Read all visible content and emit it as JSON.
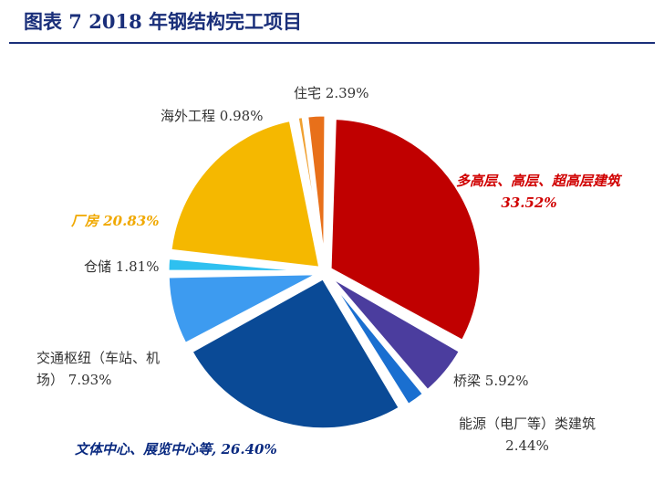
{
  "title": "图表 7 2018 年钢结构完工项目",
  "chart_data": {
    "type": "pie",
    "title": "图表 7 2018 年钢结构完工项目",
    "slices": [
      {
        "label": "多高层、高层、超高层建筑",
        "value": 33.52,
        "text": "33.52%",
        "color": "#c00000"
      },
      {
        "label": "桥梁",
        "value": 5.92,
        "text": "5.92%",
        "color": "#4b3d9e"
      },
      {
        "label": "能源（电厂等）类建筑",
        "value": 2.44,
        "text": "2.44%",
        "color": "#1a6fd0"
      },
      {
        "label": "文体中心、展览中心等",
        "value": 26.4,
        "text": "26.40%",
        "color": "#0a4a96"
      },
      {
        "label": "交通枢纽（车站、机场）",
        "value": 7.93,
        "text": "7.93%",
        "color": "#3d9bf0"
      },
      {
        "label": "仓储",
        "value": 1.81,
        "text": "1.81%",
        "color": "#2ec0f0"
      },
      {
        "label": "厂房",
        "value": 20.83,
        "text": "20.83%",
        "color": "#f5b800"
      },
      {
        "label": "海外工程",
        "value": 0.98,
        "text": "0.98%",
        "color": "#f0a030"
      },
      {
        "label": "住宅",
        "value": 2.39,
        "text": "2.39%",
        "color": "#e8701a"
      }
    ]
  }
}
